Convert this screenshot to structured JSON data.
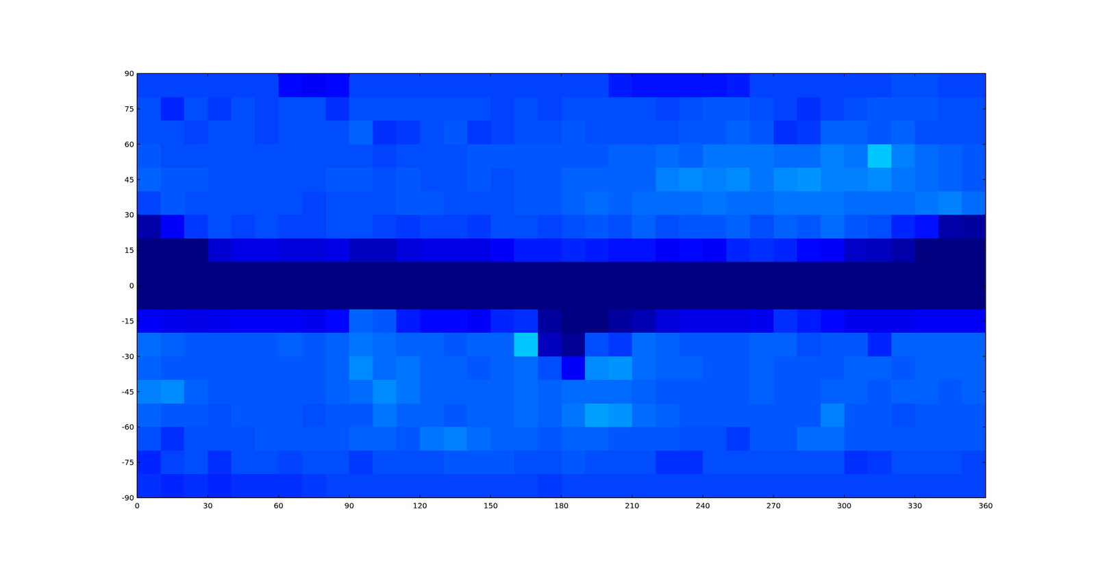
{
  "chart_data": {
    "type": "heatmap",
    "color": "jet",
    "xlim": [
      0,
      360
    ],
    "ylim": [
      -90,
      90
    ],
    "xticks": [
      0,
      30,
      60,
      90,
      120,
      150,
      180,
      210,
      240,
      270,
      300,
      330,
      360
    ],
    "yticks": [
      -90,
      -75,
      -60,
      -45,
      -30,
      -15,
      0,
      15,
      30,
      45,
      60,
      75,
      90
    ],
    "zlim": [
      0,
      10
    ],
    "cells": [
      [
        1.9,
        1.9,
        1.9,
        1.9,
        1.9,
        1.9,
        1.3,
        1.2,
        1.3,
        1.9,
        1.9,
        1.9,
        1.9,
        1.9,
        1.9,
        1.9,
        1.9,
        1.9,
        1.9,
        1.9,
        1.5,
        1.4,
        1.4,
        1.4,
        1.4,
        1.5,
        1.9,
        1.9,
        1.9,
        1.9,
        1.9,
        1.9,
        2.0,
        2.0,
        1.9,
        1.9
      ],
      [
        2.0,
        1.6,
        2.0,
        1.8,
        2.0,
        1.9,
        2.0,
        2.0,
        1.7,
        2.0,
        2.0,
        2.0,
        2.0,
        2.0,
        2.0,
        1.9,
        2.0,
        1.9,
        2.0,
        2.0,
        2.0,
        2.0,
        1.9,
        2.0,
        2.1,
        2.1,
        2.0,
        1.9,
        1.7,
        1.9,
        2.0,
        2.1,
        2.1,
        2.1,
        2.0,
        2.0
      ],
      [
        2.0,
        2.0,
        1.9,
        2.0,
        2.0,
        1.9,
        2.0,
        2.0,
        2.0,
        2.2,
        1.7,
        1.8,
        2.0,
        2.1,
        1.8,
        1.9,
        2.0,
        2.0,
        2.1,
        2.0,
        2.0,
        2.0,
        2.0,
        2.1,
        2.1,
        2.2,
        2.1,
        1.7,
        1.8,
        2.2,
        2.2,
        2.1,
        2.2,
        2.0,
        2.0,
        2.0
      ],
      [
        2.1,
        2.0,
        2.0,
        2.0,
        2.0,
        2.0,
        2.0,
        2.0,
        2.0,
        2.0,
        1.9,
        2.0,
        2.0,
        2.0,
        2.1,
        2.1,
        2.1,
        2.1,
        2.1,
        2.1,
        2.2,
        2.2,
        2.3,
        2.2,
        2.4,
        2.4,
        2.4,
        2.3,
        2.3,
        2.5,
        2.4,
        3.2,
        2.5,
        2.3,
        2.2,
        2.1
      ],
      [
        2.2,
        2.1,
        2.1,
        2.0,
        2.0,
        2.0,
        2.0,
        2.0,
        2.1,
        2.1,
        2.0,
        2.1,
        2.0,
        2.0,
        2.1,
        2.0,
        2.1,
        2.1,
        2.2,
        2.2,
        2.2,
        2.2,
        2.5,
        2.6,
        2.5,
        2.6,
        2.4,
        2.6,
        2.7,
        2.5,
        2.5,
        2.6,
        2.4,
        2.3,
        2.2,
        2.1
      ],
      [
        1.9,
        2.1,
        2.0,
        2.0,
        2.0,
        2.0,
        2.0,
        1.9,
        2.0,
        2.0,
        2.0,
        2.1,
        2.1,
        2.0,
        2.0,
        2.0,
        2.1,
        2.1,
        2.2,
        2.3,
        2.2,
        2.3,
        2.3,
        2.3,
        2.4,
        2.3,
        2.3,
        2.4,
        2.4,
        2.4,
        2.3,
        2.3,
        2.3,
        2.4,
        2.5,
        2.3
      ],
      [
        0.4,
        1.2,
        1.8,
        2.0,
        1.9,
        2.0,
        1.9,
        1.9,
        2.0,
        2.0,
        1.9,
        1.8,
        1.9,
        1.9,
        1.8,
        2.0,
        2.0,
        1.9,
        2.0,
        2.1,
        2.0,
        2.2,
        2.0,
        2.1,
        2.1,
        2.2,
        2.0,
        2.2,
        2.1,
        2.3,
        2.1,
        2.0,
        1.6,
        1.4,
        0.4,
        0.3
      ],
      [
        0,
        0,
        0,
        0.8,
        1.0,
        1.0,
        0.9,
        0.9,
        1.0,
        0.6,
        0.6,
        0.9,
        1.0,
        1.0,
        1.0,
        1.2,
        1.5,
        1.5,
        1.6,
        1.5,
        1.4,
        1.4,
        1.2,
        1.3,
        1.2,
        1.6,
        1.7,
        1.6,
        1.3,
        1.2,
        0.7,
        0.6,
        0.4,
        0,
        0,
        0
      ],
      [
        0,
        0,
        0,
        0,
        0,
        0,
        0,
        0,
        0,
        0,
        0,
        0,
        0,
        0,
        0,
        0,
        0,
        0,
        0,
        0,
        0,
        0,
        0,
        0,
        0,
        0,
        0,
        0,
        0,
        0,
        0,
        0,
        0,
        0,
        0,
        0
      ],
      [
        0,
        0,
        0,
        0,
        0,
        0,
        0,
        0,
        0,
        0,
        0,
        0,
        0,
        0,
        0,
        0,
        0,
        0,
        0,
        0,
        0,
        0,
        0,
        0,
        0,
        0,
        0,
        0,
        0,
        0,
        0,
        0,
        0,
        0,
        0,
        0
      ],
      [
        1.2,
        1.1,
        1.0,
        1.1,
        1.2,
        1.2,
        1.2,
        1.1,
        1.3,
        2.2,
        2.1,
        1.5,
        1.3,
        1.3,
        1.2,
        1.6,
        1.7,
        0.3,
        0,
        0,
        0.3,
        0.5,
        0.9,
        1.0,
        1.0,
        1.0,
        1.1,
        1.7,
        1.5,
        1.3,
        1.1,
        1.1,
        1.1,
        1.2,
        1.2,
        1.2
      ],
      [
        2.3,
        2.2,
        2.1,
        2.1,
        2.1,
        2.1,
        2.2,
        2.1,
        2.2,
        2.4,
        2.3,
        2.2,
        2.2,
        2.1,
        2.2,
        2.2,
        3.2,
        0.6,
        0.2,
        2.0,
        1.8,
        2.3,
        2.2,
        2.1,
        2.1,
        2.1,
        2.2,
        2.2,
        2.0,
        2.1,
        2.1,
        1.6,
        2.2,
        2.2,
        2.2,
        2.2
      ],
      [
        2.2,
        2.1,
        2.1,
        2.1,
        2.1,
        2.1,
        2.1,
        2.1,
        2.2,
        2.6,
        2.3,
        2.4,
        2.2,
        2.2,
        2.1,
        2.2,
        2.3,
        2.0,
        1.2,
        2.6,
        2.7,
        2.3,
        2.2,
        2.2,
        2.1,
        2.1,
        2.2,
        2.1,
        2.1,
        2.1,
        2.2,
        2.2,
        2.1,
        2.2,
        2.2,
        2.2
      ],
      [
        2.5,
        2.6,
        2.2,
        2.1,
        2.1,
        2.1,
        2.1,
        2.1,
        2.2,
        2.3,
        2.6,
        2.4,
        2.2,
        2.2,
        2.2,
        2.2,
        2.3,
        2.2,
        2.3,
        2.3,
        2.3,
        2.2,
        2.1,
        2.1,
        2.1,
        2.1,
        2.2,
        2.1,
        2.1,
        2.2,
        2.2,
        2.1,
        2.2,
        2.2,
        2.1,
        2.2
      ],
      [
        2.2,
        2.1,
        2.1,
        2.0,
        2.1,
        2.1,
        2.1,
        2.0,
        2.1,
        2.1,
        2.4,
        2.2,
        2.2,
        2.1,
        2.2,
        2.2,
        2.3,
        2.2,
        2.4,
        2.8,
        2.7,
        2.3,
        2.2,
        2.1,
        2.1,
        2.1,
        2.1,
        2.1,
        2.1,
        2.5,
        2.1,
        2.1,
        2.0,
        2.1,
        2.1,
        2.1
      ],
      [
        2.0,
        1.7,
        2.0,
        2.0,
        2.0,
        2.1,
        2.1,
        2.1,
        2.1,
        2.2,
        2.2,
        2.1,
        2.4,
        2.5,
        2.3,
        2.2,
        2.2,
        2.1,
        2.2,
        2.2,
        2.1,
        2.1,
        2.1,
        2.0,
        2.0,
        1.8,
        2.1,
        2.1,
        2.3,
        2.3,
        2.1,
        2.1,
        2.1,
        2.1,
        2.1,
        2.1
      ],
      [
        1.6,
        1.9,
        2.0,
        1.7,
        2.0,
        2.0,
        1.9,
        2.0,
        2.0,
        1.8,
        2.0,
        2.0,
        2.0,
        2.1,
        2.1,
        2.1,
        2.0,
        2.0,
        2.1,
        2.0,
        2.0,
        2.0,
        1.7,
        1.7,
        2.0,
        2.0,
        2.0,
        2.0,
        2.0,
        2.0,
        1.7,
        1.8,
        2.0,
        2.0,
        2.0,
        1.9
      ],
      [
        1.7,
        1.6,
        1.7,
        1.6,
        1.7,
        1.7,
        1.7,
        1.8,
        1.9,
        1.9,
        1.9,
        1.9,
        1.9,
        1.9,
        1.9,
        1.9,
        1.9,
        1.8,
        1.9,
        1.9,
        1.9,
        1.9,
        1.9,
        1.9,
        1.9,
        1.9,
        1.9,
        1.9,
        1.9,
        1.9,
        1.9,
        1.9,
        1.9,
        1.9,
        1.9,
        1.9
      ]
    ]
  }
}
